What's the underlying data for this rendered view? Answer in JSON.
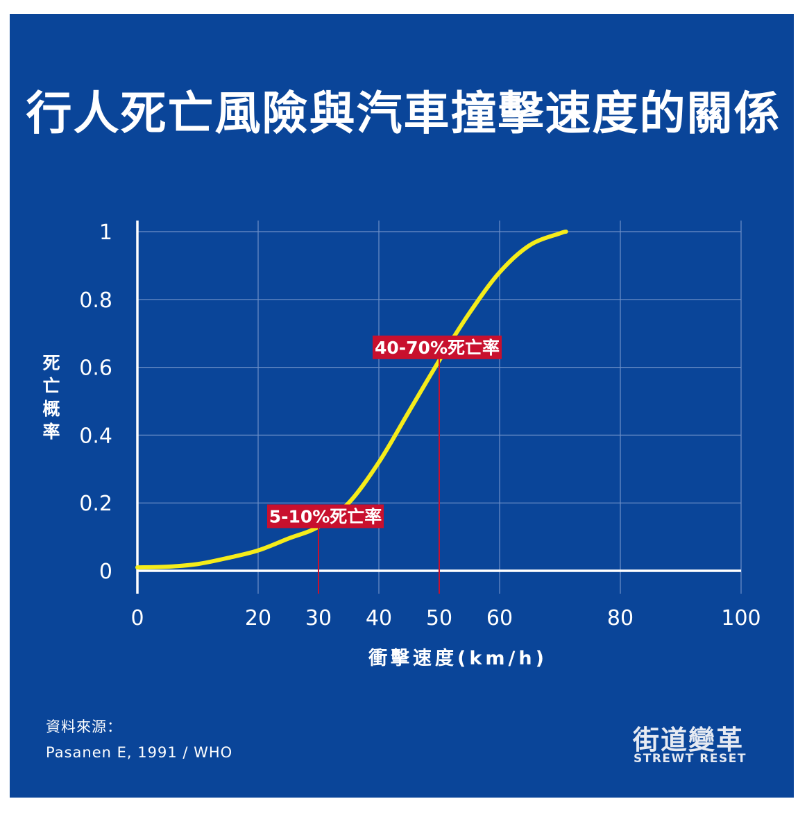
{
  "title": "行人死亡風險與汽車撞擊速度的關係",
  "source": {
    "label": "資料來源：",
    "text": "Pasanen E, 1991 / WHO"
  },
  "logo": {
    "chinese": "街道變革",
    "english": "STREWT RESET"
  },
  "colors": {
    "background": "#0a4599",
    "curve": "#f5ec1a",
    "marker": "#c8102e",
    "grid": "#6d8fc8",
    "axis": "#ffffff"
  },
  "chart_data": {
    "type": "line",
    "title": "行人死亡風險與汽車撞擊速度的關係",
    "xlabel": "衝擊速度(km/h)",
    "ylabel": "死亡概率",
    "xlim": [
      0,
      100
    ],
    "ylim": [
      0,
      1
    ],
    "x_ticks": [
      0,
      20,
      30,
      40,
      50,
      60,
      80,
      100
    ],
    "y_ticks": [
      0,
      0.2,
      0.4,
      0.6,
      0.8,
      1
    ],
    "x_gridlines": [
      20,
      40,
      60,
      80,
      100
    ],
    "y_gridlines": [
      0.2,
      0.4,
      0.6,
      0.8,
      1
    ],
    "grid": true,
    "series": [
      {
        "x": [
          0,
          5,
          10,
          15,
          20,
          25,
          30,
          35,
          40,
          45,
          50,
          55,
          60,
          65,
          70,
          71
        ],
        "y": [
          0.01,
          0.012,
          0.02,
          0.038,
          0.06,
          0.095,
          0.13,
          0.2,
          0.32,
          0.47,
          0.62,
          0.76,
          0.88,
          0.96,
          0.995,
          1.0
        ]
      }
    ],
    "annotations": [
      {
        "x": 30,
        "y": 0.13,
        "label": "5-10%死亡率"
      },
      {
        "x": 50,
        "y": 0.62,
        "label": "40-70%死亡率"
      }
    ]
  }
}
